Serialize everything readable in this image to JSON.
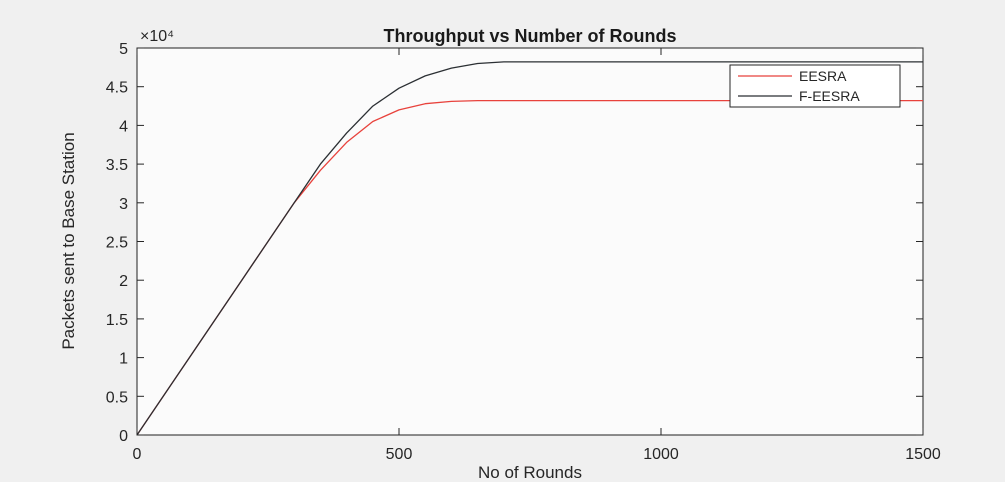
{
  "chart_data": {
    "type": "line",
    "title": "Throughput vs Number of Rounds",
    "xlabel": "No of Rounds",
    "ylabel": "Packets sent to Base Station",
    "y_exponent_label": "×10⁴",
    "xlim": [
      0,
      1500
    ],
    "ylim": [
      0,
      50000
    ],
    "x_ticks": [
      0,
      500,
      1000,
      1500
    ],
    "x_tick_labels": [
      "0",
      "500",
      "1000",
      "1500"
    ],
    "y_ticks": [
      0,
      5000,
      10000,
      15000,
      20000,
      25000,
      30000,
      35000,
      40000,
      45000,
      50000
    ],
    "y_tick_labels": [
      "0",
      "0.5",
      "1",
      "1.5",
      "2",
      "2.5",
      "3",
      "3.5",
      "4",
      "4.5",
      "5"
    ],
    "grid": false,
    "legend_position": "top-right",
    "series": [
      {
        "name": "EESRA",
        "color": "#e8423c",
        "x": [
          0,
          100,
          200,
          300,
          350,
          400,
          450,
          500,
          550,
          600,
          650,
          700,
          1000,
          1500
        ],
        "y": [
          0,
          10000,
          20000,
          30000,
          34200,
          37800,
          40500,
          42000,
          42800,
          43100,
          43200,
          43200,
          43200,
          43200
        ]
      },
      {
        "name": "F-EESRA",
        "color": "#2b2f33",
        "x": [
          0,
          100,
          200,
          300,
          350,
          400,
          450,
          500,
          550,
          600,
          650,
          700,
          1000,
          1500
        ],
        "y": [
          0,
          10000,
          20000,
          30000,
          35000,
          39000,
          42500,
          44800,
          46400,
          47400,
          48000,
          48200,
          48200,
          48200
        ]
      }
    ]
  }
}
